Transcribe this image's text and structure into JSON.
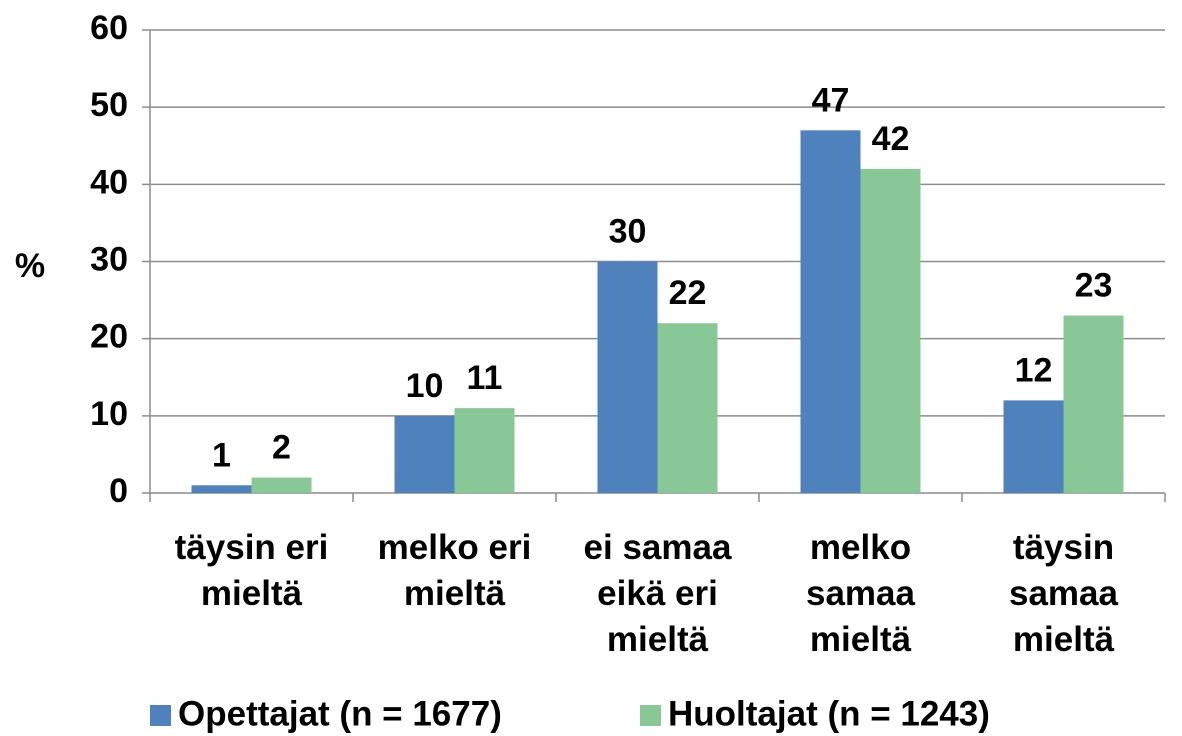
{
  "chart_data": {
    "type": "bar",
    "y_label": "%",
    "categories": [
      [
        "täysin eri",
        "mieltä"
      ],
      [
        "melko eri",
        "mieltä"
      ],
      [
        "ei samaa",
        "eikä eri",
        "mieltä"
      ],
      [
        "melko",
        "samaa",
        "mieltä"
      ],
      [
        "täysin",
        "samaa",
        "mieltä"
      ]
    ],
    "series": [
      {
        "name": "Opettajat (n = 1677)",
        "color": "#4f81bd",
        "values": [
          1,
          10,
          30,
          47,
          12
        ]
      },
      {
        "name": "Huoltajat (n = 1243)",
        "color": "#88c796",
        "values": [
          2,
          11,
          22,
          42,
          23
        ]
      }
    ],
    "ylim": [
      0,
      60
    ],
    "yticks": [
      0,
      10,
      20,
      30,
      40,
      50,
      60
    ],
    "grid": true,
    "legend": "bottom"
  }
}
